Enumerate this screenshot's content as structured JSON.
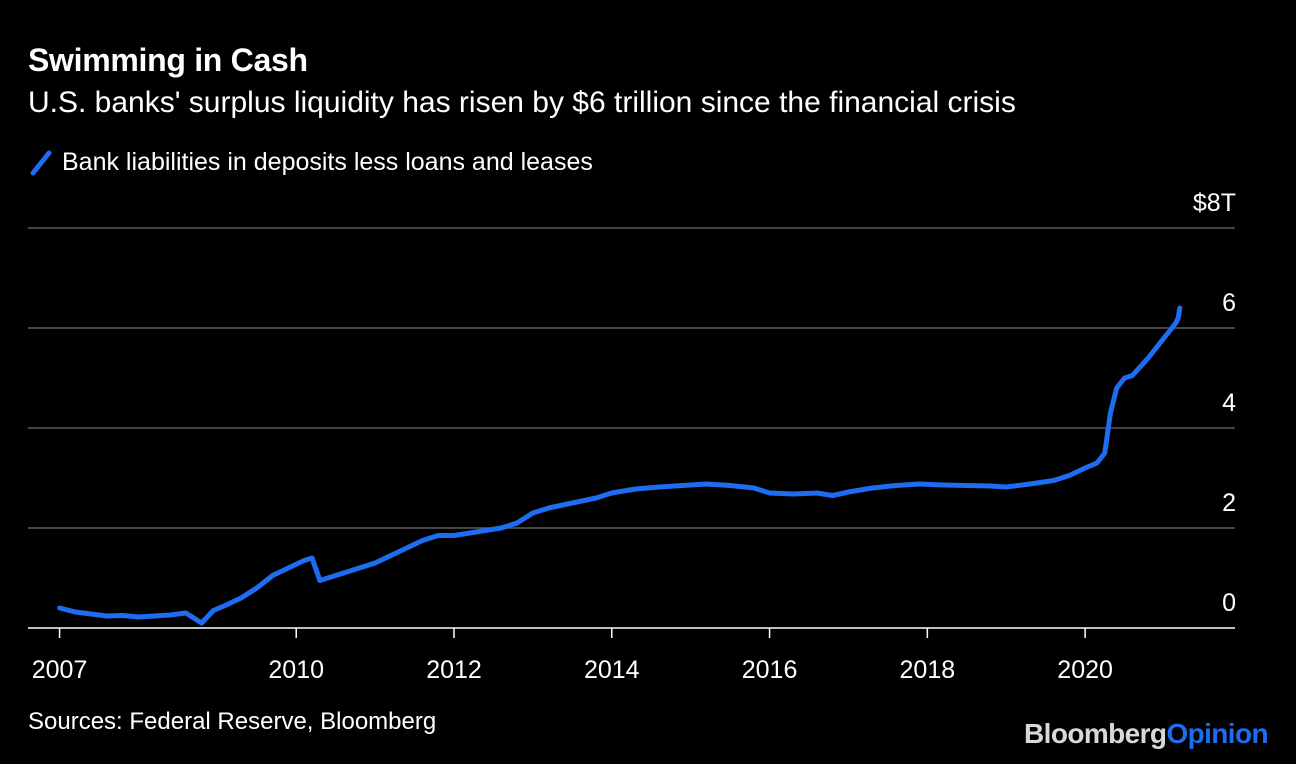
{
  "header": {
    "title": "Swimming in Cash",
    "subtitle": "U.S. banks' surplus liquidity has risen by $6 trillion since the financial crisis"
  },
  "legend": {
    "label": "Bank liabilities in deposits less loans and leases",
    "color": "#1d6cf2"
  },
  "footer": {
    "source": "Sources: Federal Reserve, Bloomberg",
    "brand_bloomberg": "Bloomberg",
    "brand_opinion": "Opinion"
  },
  "colors": {
    "background": "#000000",
    "line": "#1d6cf2",
    "grid": "#5a5a5a",
    "axis": "#ffffff"
  },
  "chart_data": {
    "type": "line",
    "title": "Swimming in Cash",
    "subtitle": "U.S. banks' surplus liquidity has risen by $6 trillion since the financial crisis",
    "xlabel": "",
    "ylabel": "",
    "units": "USD trillions",
    "xlim": [
      2006.6,
      2021.9
    ],
    "ylim": [
      0,
      8
    ],
    "y_ticks": [
      {
        "value": 0,
        "label": "0"
      },
      {
        "value": 2,
        "label": "2"
      },
      {
        "value": 4,
        "label": "4"
      },
      {
        "value": 6,
        "label": "6"
      },
      {
        "value": 8,
        "label": "$8T"
      }
    ],
    "x_ticks": [
      {
        "value": 2007,
        "label": "2007"
      },
      {
        "value": 2010,
        "label": "2010"
      },
      {
        "value": 2012,
        "label": "2012"
      },
      {
        "value": 2014,
        "label": "2014"
      },
      {
        "value": 2016,
        "label": "2016"
      },
      {
        "value": 2018,
        "label": "2018"
      },
      {
        "value": 2020,
        "label": "2020"
      }
    ],
    "grid": true,
    "legend_position": "top-left",
    "series": [
      {
        "name": "Bank liabilities in deposits less loans and leases",
        "color": "#1d6cf2",
        "x": [
          2007.0,
          2007.2,
          2007.4,
          2007.6,
          2007.8,
          2008.0,
          2008.2,
          2008.4,
          2008.6,
          2008.8,
          2008.95,
          2009.1,
          2009.3,
          2009.5,
          2009.7,
          2009.9,
          2010.1,
          2010.2,
          2010.3,
          2010.4,
          2010.6,
          2010.8,
          2011.0,
          2011.2,
          2011.4,
          2011.6,
          2011.8,
          2012.0,
          2012.2,
          2012.4,
          2012.6,
          2012.8,
          2013.0,
          2013.2,
          2013.5,
          2013.8,
          2014.0,
          2014.3,
          2014.6,
          2014.9,
          2015.2,
          2015.5,
          2015.8,
          2016.0,
          2016.3,
          2016.6,
          2016.8,
          2017.0,
          2017.3,
          2017.6,
          2017.9,
          2018.2,
          2018.5,
          2018.8,
          2019.0,
          2019.3,
          2019.6,
          2019.8,
          2020.0,
          2020.15,
          2020.25,
          2020.32,
          2020.4,
          2020.5,
          2020.6,
          2020.8,
          2021.0,
          2021.1,
          2021.15,
          2021.18,
          2021.2
        ],
        "values": [
          0.4,
          0.32,
          0.28,
          0.24,
          0.25,
          0.22,
          0.24,
          0.26,
          0.3,
          0.1,
          0.35,
          0.45,
          0.6,
          0.8,
          1.05,
          1.2,
          1.35,
          1.4,
          0.95,
          1.0,
          1.1,
          1.2,
          1.3,
          1.45,
          1.6,
          1.75,
          1.85,
          1.85,
          1.9,
          1.95,
          2.0,
          2.1,
          2.3,
          2.4,
          2.5,
          2.6,
          2.7,
          2.78,
          2.82,
          2.85,
          2.88,
          2.85,
          2.8,
          2.7,
          2.68,
          2.7,
          2.65,
          2.72,
          2.8,
          2.85,
          2.88,
          2.86,
          2.85,
          2.84,
          2.82,
          2.88,
          2.95,
          3.05,
          3.2,
          3.3,
          3.5,
          4.3,
          4.8,
          5.0,
          5.05,
          5.4,
          5.8,
          6.0,
          6.1,
          6.2,
          6.4
        ]
      }
    ]
  }
}
